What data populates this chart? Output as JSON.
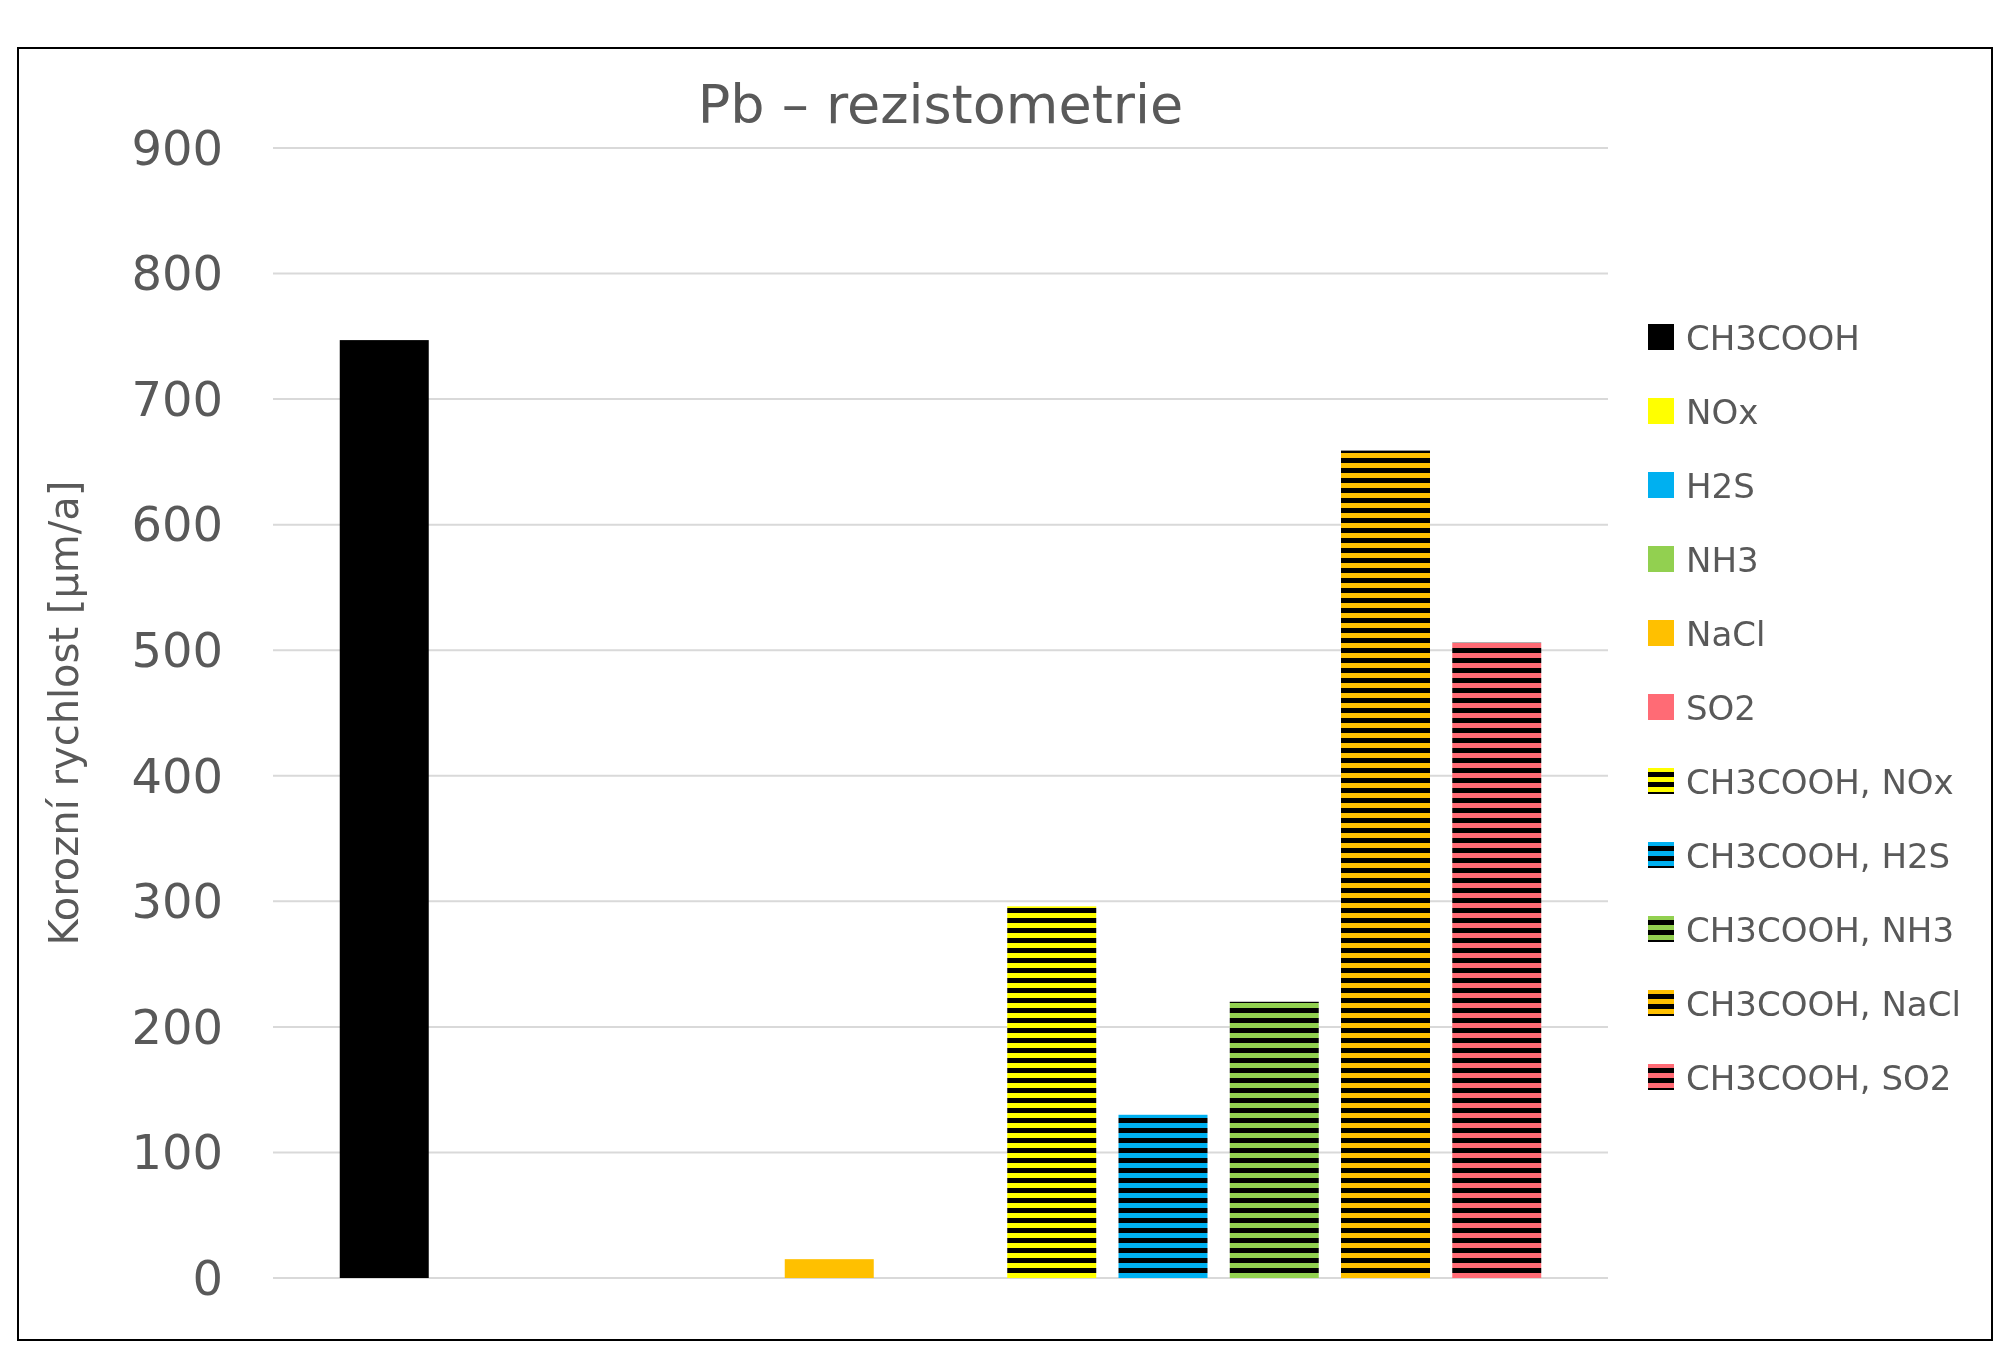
{
  "chart_data": {
    "type": "bar",
    "title": "Pb – rezistometrie",
    "ylabel": "Korozní rychlost [µm/a]",
    "categories": [
      null
    ],
    "series": [
      {
        "name": "CH3COOH",
        "color": "#000000",
        "values": [
          747
        ]
      },
      {
        "name": "NOx",
        "color": "#ffff00",
        "values": [
          0
        ]
      },
      {
        "name": "H2S",
        "color": "#00b0f0",
        "values": [
          0
        ]
      },
      {
        "name": "NH3",
        "color": "#92d050",
        "values": [
          0
        ]
      },
      {
        "name": "NaCl",
        "color": "#ffc000",
        "values": [
          15
        ]
      },
      {
        "name": "SO2",
        "color": "#ff6b75",
        "values": [
          0
        ]
      },
      {
        "name": "CH3COOH, NOx",
        "color": "#ffff00",
        "values": [
          296
        ]
      },
      {
        "name": "CH3COOH, H2S",
        "color": "#00b0f0",
        "values": [
          130
        ]
      },
      {
        "name": "CH3COOH, NH3",
        "color": "#92d050",
        "values": [
          220
        ]
      },
      {
        "name": "CH3COOH, NaCl",
        "color": "#ffc000",
        "values": [
          659
        ]
      },
      {
        "name": "CH3COOH, SO2",
        "color": "#ff6b75",
        "values": [
          506
        ]
      }
    ],
    "ylim": [
      0,
      900
    ],
    "yticks": [
      0,
      100,
      200,
      300,
      400,
      500,
      600,
      700,
      800,
      900
    ],
    "grid": "y",
    "legend": "right"
  }
}
